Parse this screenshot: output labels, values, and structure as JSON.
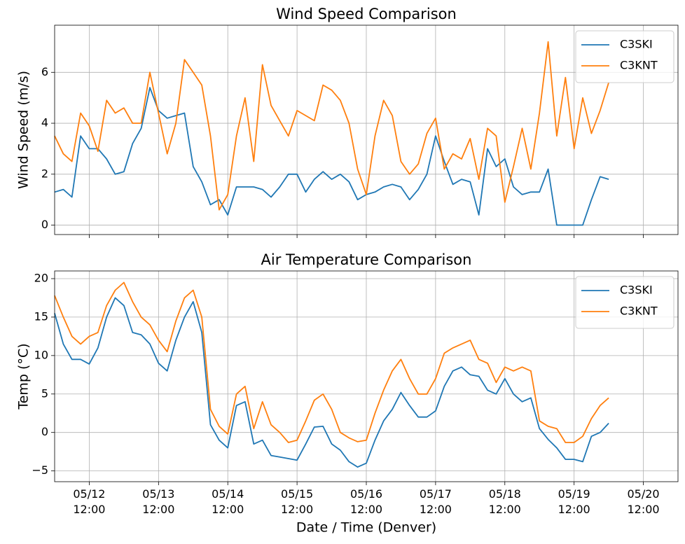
{
  "chart_data": [
    {
      "type": "line",
      "title": "Wind Speed Comparison",
      "ylabel": "Wind Speed (m/s)",
      "x": [
        "05/12 00:00",
        "05/12 03:00",
        "05/12 06:00",
        "05/12 09:00",
        "05/12 12:00",
        "05/12 15:00",
        "05/12 18:00",
        "05/12 21:00",
        "05/13 00:00",
        "05/13 03:00",
        "05/13 06:00",
        "05/13 09:00",
        "05/13 12:00",
        "05/13 15:00",
        "05/13 18:00",
        "05/13 21:00",
        "05/14 00:00",
        "05/14 03:00",
        "05/14 06:00",
        "05/14 09:00",
        "05/14 12:00",
        "05/14 15:00",
        "05/14 18:00",
        "05/14 21:00",
        "05/15 00:00",
        "05/15 03:00",
        "05/15 06:00",
        "05/15 09:00",
        "05/15 12:00",
        "05/15 15:00",
        "05/15 18:00",
        "05/15 21:00",
        "05/16 00:00",
        "05/16 03:00",
        "05/16 06:00",
        "05/16 09:00",
        "05/16 12:00",
        "05/16 15:00",
        "05/16 18:00",
        "05/16 21:00",
        "05/17 00:00",
        "05/17 03:00",
        "05/17 06:00",
        "05/17 09:00",
        "05/17 12:00",
        "05/17 15:00",
        "05/17 18:00",
        "05/17 21:00",
        "05/18 00:00",
        "05/18 03:00",
        "05/18 06:00",
        "05/18 09:00",
        "05/18 12:00",
        "05/18 15:00",
        "05/18 18:00",
        "05/18 21:00",
        "05/19 00:00",
        "05/19 03:00",
        "05/19 06:00",
        "05/19 09:00",
        "05/19 12:00",
        "05/19 15:00",
        "05/19 18:00",
        "05/19 21:00",
        "05/20 00:00"
      ],
      "series": [
        {
          "name": "C3SKI",
          "color": "#1f77b4",
          "values": [
            1.3,
            1.4,
            1.1,
            3.5,
            3.0,
            3.0,
            2.6,
            2.0,
            2.1,
            3.2,
            3.8,
            5.4,
            4.5,
            4.2,
            4.3,
            4.4,
            2.3,
            1.7,
            0.8,
            1.0,
            0.4,
            1.5,
            1.5,
            1.5,
            1.4,
            1.1,
            1.5,
            2.0,
            2.0,
            1.3,
            1.8,
            2.1,
            1.8,
            2.0,
            1.7,
            1.0,
            1.2,
            1.3,
            1.5,
            1.6,
            1.5,
            1.0,
            1.4,
            2.0,
            3.5,
            2.5,
            1.6,
            1.8,
            1.7,
            0.4,
            3.0,
            2.3,
            2.6,
            1.5,
            1.2,
            1.3,
            1.3,
            2.2,
            0.0,
            0.0,
            0.0,
            0.0,
            1.0,
            1.9,
            1.8
          ]
        },
        {
          "name": "C3KNT",
          "color": "#ff7f0e",
          "values": [
            3.5,
            2.8,
            2.5,
            4.4,
            3.9,
            2.9,
            4.9,
            4.4,
            4.6,
            4.0,
            4.0,
            6.0,
            4.4,
            2.8,
            4.0,
            6.5,
            6.0,
            5.5,
            3.5,
            0.6,
            1.2,
            3.5,
            5.0,
            2.5,
            6.3,
            4.7,
            4.1,
            3.5,
            4.5,
            4.3,
            4.1,
            5.5,
            5.3,
            4.9,
            4.0,
            2.2,
            1.2,
            3.5,
            4.9,
            4.3,
            2.5,
            2.0,
            2.4,
            3.6,
            4.2,
            2.2,
            2.8,
            2.6,
            3.4,
            1.8,
            3.8,
            3.5,
            0.9,
            2.3,
            3.8,
            2.2,
            4.4,
            7.2,
            3.5,
            5.8,
            3.0,
            5.0,
            3.6,
            4.5,
            5.6
          ]
        }
      ],
      "xlim": [
        "05/12 00:00",
        "05/21 00:00"
      ],
      "xticks": [
        "05/12 12:00",
        "05/13 12:00",
        "05/14 12:00",
        "05/15 12:00",
        "05/16 12:00",
        "05/17 12:00",
        "05/18 12:00",
        "05/19 12:00",
        "05/20 12:00"
      ],
      "ylim": [
        -0.37,
        7.85
      ],
      "yticks": [
        0,
        2,
        4,
        6
      ],
      "grid": true,
      "legend": "upper right"
    },
    {
      "type": "line",
      "title": "Air Temperature Comparison",
      "ylabel": "Temp (°C)",
      "xlabel": "Date / Time (Denver)",
      "x": [
        "05/12 00:00",
        "05/12 03:00",
        "05/12 06:00",
        "05/12 09:00",
        "05/12 12:00",
        "05/12 15:00",
        "05/12 18:00",
        "05/12 21:00",
        "05/13 00:00",
        "05/13 03:00",
        "05/13 06:00",
        "05/13 09:00",
        "05/13 12:00",
        "05/13 15:00",
        "05/13 18:00",
        "05/13 21:00",
        "05/14 00:00",
        "05/14 03:00",
        "05/14 06:00",
        "05/14 09:00",
        "05/14 12:00",
        "05/14 15:00",
        "05/14 18:00",
        "05/14 21:00",
        "05/15 00:00",
        "05/15 03:00",
        "05/15 06:00",
        "05/15 09:00",
        "05/15 12:00",
        "05/15 15:00",
        "05/15 18:00",
        "05/15 21:00",
        "05/16 00:00",
        "05/16 03:00",
        "05/16 06:00",
        "05/16 09:00",
        "05/16 12:00",
        "05/16 15:00",
        "05/16 18:00",
        "05/16 21:00",
        "05/17 00:00",
        "05/17 03:00",
        "05/17 06:00",
        "05/17 09:00",
        "05/17 12:00",
        "05/17 15:00",
        "05/17 18:00",
        "05/17 21:00",
        "05/18 00:00",
        "05/18 03:00",
        "05/18 06:00",
        "05/18 09:00",
        "05/18 12:00",
        "05/18 15:00",
        "05/18 18:00",
        "05/18 21:00",
        "05/19 00:00",
        "05/19 03:00",
        "05/19 06:00",
        "05/19 09:00",
        "05/19 12:00",
        "05/19 15:00",
        "05/19 18:00",
        "05/19 21:00",
        "05/20 00:00"
      ],
      "series": [
        {
          "name": "C3SKI",
          "color": "#1f77b4",
          "values": [
            15.5,
            11.5,
            9.5,
            9.5,
            8.9,
            11,
            15,
            17.5,
            16.5,
            13,
            12.7,
            11.5,
            9,
            8,
            12,
            15,
            17,
            13,
            1,
            -1,
            -2,
            3.5,
            4,
            -1.5,
            -1,
            -3,
            -3.2,
            -3.4,
            -3.6,
            -1.5,
            0.7,
            0.8,
            -1.5,
            -2.3,
            -3.8,
            -4.5,
            -4,
            -1,
            1.5,
            3,
            5.2,
            3.5,
            2,
            2,
            2.8,
            6,
            8,
            8.5,
            7.5,
            7.3,
            5.5,
            5,
            7,
            5,
            4,
            4.5,
            0.5,
            -0.9,
            -2,
            -3.5,
            -3.5,
            -3.8,
            -0.5,
            0,
            1.2
          ]
        },
        {
          "name": "C3KNT",
          "color": "#ff7f0e",
          "values": [
            17.8,
            15,
            12.5,
            11.5,
            12.5,
            13,
            16.5,
            18.5,
            19.5,
            17,
            15,
            14,
            12,
            10.5,
            14.5,
            17.5,
            18.5,
            15,
            3,
            0.8,
            -0.2,
            5,
            6,
            0.5,
            4,
            1,
            0,
            -1.3,
            -1,
            1.5,
            4.2,
            5,
            3,
            0,
            -0.7,
            -1.2,
            -1,
            2.5,
            5.5,
            8,
            9.5,
            7,
            5,
            5,
            7,
            10.3,
            11,
            11.5,
            12,
            9.5,
            9,
            6.5,
            8.5,
            8,
            8.5,
            8,
            1.5,
            0.8,
            0.5,
            -1.3,
            -1.3,
            -0.5,
            1.8,
            3.5,
            4.5
          ]
        }
      ],
      "xlim": [
        "05/12 00:00",
        "05/21 00:00"
      ],
      "xticks": [
        "05/12 12:00",
        "05/13 12:00",
        "05/14 12:00",
        "05/15 12:00",
        "05/16 12:00",
        "05/17 12:00",
        "05/18 12:00",
        "05/19 12:00",
        "05/20 12:00"
      ],
      "ylim": [
        -6.4,
        21
      ],
      "yticks": [
        {
          "value": -5,
          "label": "−5"
        },
        0,
        5,
        10,
        15,
        20
      ],
      "grid": true,
      "legend": "upper right"
    }
  ]
}
